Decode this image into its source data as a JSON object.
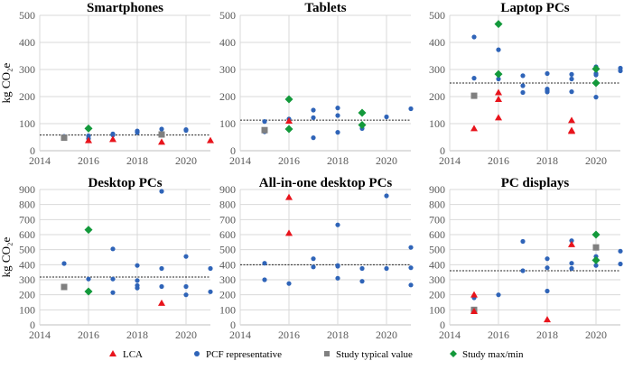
{
  "legend": {
    "lca": "LCA",
    "pcf": "PCF representative",
    "typical": "Study typical value",
    "maxmin": "Study max/min"
  },
  "colors": {
    "lca": "#e8141c",
    "pcf": "#2f64b8",
    "typical": "#808080",
    "maxmin": "#13993b"
  },
  "chart_data": [
    {
      "type": "scatter",
      "title": "Smartphones",
      "ylabel": "kg CO₂e",
      "xlim": [
        2014,
        2021
      ],
      "ylim": [
        0,
        500
      ],
      "xticks": [
        2014,
        2016,
        2018,
        2020
      ],
      "yticks": [
        0,
        100,
        200,
        300,
        400,
        500
      ],
      "grid": true,
      "reference_line": 58,
      "series": {
        "pcf": [
          [
            2015,
            53
          ],
          [
            2016,
            55
          ],
          [
            2016,
            45
          ],
          [
            2017,
            62
          ],
          [
            2017,
            58
          ],
          [
            2018,
            73
          ],
          [
            2018,
            67
          ],
          [
            2019,
            80
          ],
          [
            2019,
            65
          ],
          [
            2020,
            78
          ],
          [
            2020,
            75
          ]
        ],
        "lca": [
          [
            2016,
            38
          ],
          [
            2017,
            42
          ],
          [
            2019,
            32
          ],
          [
            2021,
            38
          ]
        ],
        "typical": [
          [
            2015,
            48
          ],
          [
            2019,
            60
          ]
        ],
        "maxmin": [
          [
            2016,
            82
          ]
        ]
      }
    },
    {
      "type": "scatter",
      "title": "Tablets",
      "ylabel": "",
      "xlim": [
        2014,
        2021
      ],
      "ylim": [
        0,
        500
      ],
      "xticks": [
        2014,
        2016,
        2018,
        2020
      ],
      "yticks": [
        0,
        100,
        200,
        300,
        400,
        500
      ],
      "grid": true,
      "reference_line": 113,
      "series": {
        "pcf": [
          [
            2015,
            108
          ],
          [
            2015,
            70
          ],
          [
            2016,
            117
          ],
          [
            2017,
            150
          ],
          [
            2017,
            122
          ],
          [
            2017,
            48
          ],
          [
            2018,
            158
          ],
          [
            2018,
            130
          ],
          [
            2018,
            68
          ],
          [
            2019,
            82
          ],
          [
            2020,
            125
          ],
          [
            2021,
            155
          ]
        ],
        "lca": [
          [
            2016,
            110
          ]
        ],
        "typical": [
          [
            2015,
            76
          ]
        ],
        "maxmin": [
          [
            2016,
            190
          ],
          [
            2016,
            80
          ],
          [
            2019,
            140
          ],
          [
            2019,
            95
          ]
        ]
      }
    },
    {
      "type": "scatter",
      "title": "Laptop PCs",
      "ylabel": "",
      "xlim": [
        2014,
        2021
      ],
      "ylim": [
        0,
        500
      ],
      "xticks": [
        2014,
        2016,
        2018,
        2020
      ],
      "yticks": [
        0,
        100,
        200,
        300,
        400,
        500
      ],
      "grid": true,
      "reference_line": 250,
      "series": {
        "pcf": [
          [
            2015,
            420
          ],
          [
            2015,
            268
          ],
          [
            2016,
            373
          ],
          [
            2016,
            265
          ],
          [
            2017,
            277
          ],
          [
            2017,
            240
          ],
          [
            2017,
            215
          ],
          [
            2018,
            285
          ],
          [
            2018,
            228
          ],
          [
            2018,
            222
          ],
          [
            2018,
            217
          ],
          [
            2019,
            282
          ],
          [
            2019,
            265
          ],
          [
            2019,
            218
          ],
          [
            2020,
            310
          ],
          [
            2020,
            285
          ],
          [
            2020,
            280
          ],
          [
            2020,
            198
          ],
          [
            2021,
            305
          ],
          [
            2021,
            295
          ]
        ],
        "lca": [
          [
            2015,
            82
          ],
          [
            2016,
            215
          ],
          [
            2016,
            190
          ],
          [
            2016,
            122
          ],
          [
            2019,
            112
          ],
          [
            2019,
            75
          ],
          [
            2019,
            72
          ]
        ],
        "typical": [
          [
            2015,
            203
          ]
        ],
        "maxmin": [
          [
            2016,
            468
          ],
          [
            2016,
            283
          ],
          [
            2020,
            302
          ],
          [
            2020,
            250
          ]
        ]
      }
    },
    {
      "type": "scatter",
      "title": "Desktop PCs",
      "ylabel": "kg CO₂e",
      "xlim": [
        2014,
        2021
      ],
      "ylim": [
        0,
        900
      ],
      "xticks": [
        2014,
        2016,
        2018,
        2020
      ],
      "yticks": [
        0,
        100,
        200,
        300,
        400,
        500,
        600,
        700,
        800,
        900
      ],
      "grid": true,
      "reference_line": 318,
      "series": {
        "pcf": [
          [
            2015,
            408
          ],
          [
            2016,
            305
          ],
          [
            2017,
            505
          ],
          [
            2017,
            305
          ],
          [
            2017,
            215
          ],
          [
            2018,
            395
          ],
          [
            2018,
            295
          ],
          [
            2018,
            262
          ],
          [
            2018,
            245
          ],
          [
            2019,
            888
          ],
          [
            2019,
            375
          ],
          [
            2019,
            255
          ],
          [
            2020,
            455
          ],
          [
            2020,
            255
          ],
          [
            2020,
            200
          ],
          [
            2021,
            375
          ],
          [
            2021,
            220
          ]
        ],
        "lca": [
          [
            2019,
            145
          ]
        ],
        "typical": [
          [
            2015,
            252
          ]
        ],
        "maxmin": [
          [
            2016,
            632
          ],
          [
            2016,
            222
          ]
        ]
      }
    },
    {
      "type": "scatter",
      "title": "All-in-one desktop PCs",
      "ylabel": "",
      "xlim": [
        2014,
        2021
      ],
      "ylim": [
        0,
        900
      ],
      "xticks": [
        2014,
        2016,
        2018,
        2020
      ],
      "yticks": [
        0,
        100,
        200,
        300,
        400,
        500,
        600,
        700,
        800,
        900
      ],
      "grid": true,
      "reference_line": 400,
      "series": {
        "pcf": [
          [
            2015,
            410
          ],
          [
            2015,
            300
          ],
          [
            2016,
            275
          ],
          [
            2017,
            440
          ],
          [
            2017,
            385
          ],
          [
            2018,
            665
          ],
          [
            2018,
            395
          ],
          [
            2018,
            390
          ],
          [
            2018,
            310
          ],
          [
            2019,
            375
          ],
          [
            2019,
            290
          ],
          [
            2020,
            858
          ],
          [
            2020,
            375
          ],
          [
            2021,
            515
          ],
          [
            2021,
            380
          ],
          [
            2021,
            265
          ]
        ],
        "lca": [
          [
            2016,
            848
          ],
          [
            2016,
            610
          ]
        ],
        "typical": [],
        "maxmin": []
      }
    },
    {
      "type": "scatter",
      "title": "PC displays",
      "ylabel": "",
      "xlim": [
        2014,
        2021
      ],
      "ylim": [
        0,
        900
      ],
      "xticks": [
        2014,
        2016,
        2018,
        2020
      ],
      "yticks": [
        0,
        100,
        200,
        300,
        400,
        500,
        600,
        700,
        800,
        900
      ],
      "grid": true,
      "reference_line": 360,
      "series": {
        "pcf": [
          [
            2015,
            180
          ],
          [
            2016,
            200
          ],
          [
            2017,
            555
          ],
          [
            2017,
            360
          ],
          [
            2018,
            440
          ],
          [
            2018,
            380
          ],
          [
            2018,
            225
          ],
          [
            2019,
            560
          ],
          [
            2019,
            410
          ],
          [
            2019,
            375
          ],
          [
            2020,
            455
          ],
          [
            2020,
            395
          ],
          [
            2021,
            490
          ],
          [
            2021,
            405
          ]
        ],
        "lca": [
          [
            2015,
            200
          ],
          [
            2015,
            90
          ],
          [
            2018,
            35
          ],
          [
            2019,
            535
          ]
        ],
        "typical": [
          [
            2015,
            100
          ],
          [
            2020,
            515
          ]
        ],
        "maxmin": [
          [
            2020,
            600
          ],
          [
            2020,
            430
          ]
        ]
      }
    }
  ]
}
